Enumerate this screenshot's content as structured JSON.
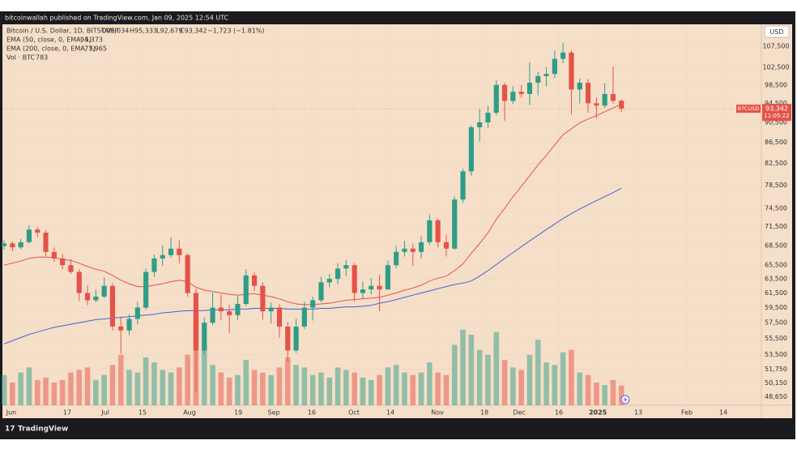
{
  "header": {
    "title": "bitcoinwallah published on TradingView.com, Jan 09, 2025 12:54 UTC"
  },
  "footer": {
    "brand": "TradingView"
  },
  "chart_data": {
    "type": "candlestick",
    "legend": {
      "symbol": "Bitcoin / U.S. Dollar, 1D, BITSTAMP",
      "ohlc": [
        "O95,034",
        "H95,333",
        "L92,679",
        "C93,342"
      ],
      "change": "−1,723 (−1.81%)",
      "ema50": {
        "name": "EMA (50, close, 0, EMA, 5)",
        "value": "94,373"
      },
      "ema200": {
        "name": "EMA (200, close, 0, EMA, 5)",
        "value": "77,965"
      },
      "volume": {
        "name": "Vol · BTC",
        "value": "783"
      }
    },
    "currency": "USD",
    "price_tag": {
      "symbol": "BTCUSD",
      "price": "93,342",
      "countdown": "11:05:22"
    },
    "log_scale": true,
    "grid": true,
    "up_color": "#2e9d88",
    "down_color": "#e5524a",
    "ylim": [
      47700,
      113000
    ],
    "yticks": [
      {
        "value": 107500,
        "label": "107,500"
      },
      {
        "value": 102500,
        "label": "102,500"
      },
      {
        "value": 98500,
        "label": "98,500"
      },
      {
        "value": 94500,
        "label": "94,500"
      },
      {
        "value": 90500,
        "label": "90,500"
      },
      {
        "value": 86500,
        "label": "86,500"
      },
      {
        "value": 82500,
        "label": "82,500"
      },
      {
        "value": 78500,
        "label": "78,500"
      },
      {
        "value": 74500,
        "label": "74,500"
      },
      {
        "value": 71500,
        "label": "71,500"
      },
      {
        "value": 68500,
        "label": "68,500"
      },
      {
        "value": 65500,
        "label": "65,500"
      },
      {
        "value": 63500,
        "label": "63,500"
      },
      {
        "value": 61500,
        "label": "61,500"
      },
      {
        "value": 59500,
        "label": "59,500"
      },
      {
        "value": 57500,
        "label": "57,500"
      },
      {
        "value": 55500,
        "label": "55,500"
      },
      {
        "value": 53500,
        "label": "53,500"
      },
      {
        "value": 51750,
        "label": "51,750"
      },
      {
        "value": 50150,
        "label": "50,150"
      },
      {
        "value": 48650,
        "label": "48,650"
      }
    ],
    "xlim": [
      -0.49,
      90.77
    ],
    "xticks": [
      {
        "value": 0.87,
        "label": "Jun"
      },
      {
        "value": 7.57,
        "label": "17"
      },
      {
        "value": 12.14,
        "label": "Jul"
      },
      {
        "value": 16.6,
        "label": "15"
      },
      {
        "value": 22.23,
        "label": "Aug"
      },
      {
        "value": 28.06,
        "label": "19"
      },
      {
        "value": 32.33,
        "label": "Sep"
      },
      {
        "value": 36.89,
        "label": "16"
      },
      {
        "value": 41.94,
        "label": "Oct"
      },
      {
        "value": 46.31,
        "label": "14"
      },
      {
        "value": 51.94,
        "label": "Nov"
      },
      {
        "value": 57.57,
        "label": "18"
      },
      {
        "value": 61.75,
        "label": "Dec"
      },
      {
        "value": 66.5,
        "label": "16"
      },
      {
        "value": 71.17,
        "label": "2025"
      },
      {
        "value": 76.02,
        "label": "13"
      },
      {
        "value": 81.84,
        "label": "Feb"
      },
      {
        "value": 86.21,
        "label": "14"
      }
    ],
    "candles": [
      [
        68400,
        69300,
        67800,
        68800
      ],
      [
        68800,
        69100,
        67600,
        68200
      ],
      [
        68200,
        69500,
        67900,
        69000
      ],
      [
        69000,
        71700,
        68800,
        71000
      ],
      [
        71000,
        71400,
        69800,
        70500
      ],
      [
        70500,
        70900,
        66800,
        67500
      ],
      [
        67500,
        68200,
        66000,
        66500
      ],
      [
        66500,
        67200,
        64900,
        65500
      ],
      [
        65500,
        66400,
        64200,
        64500
      ],
      [
        64500,
        64900,
        60400,
        61500
      ],
      [
        61500,
        62600,
        59800,
        60500
      ],
      [
        60500,
        62000,
        60200,
        61000
      ],
      [
        61000,
        63700,
        60800,
        62500
      ],
      [
        62500,
        62900,
        56500,
        57000
      ],
      [
        57000,
        58300,
        53600,
        56500
      ],
      [
        56500,
        58600,
        55900,
        58000
      ],
      [
        58000,
        60300,
        57300,
        59500
      ],
      [
        59500,
        65000,
        59200,
        64500
      ],
      [
        64500,
        67100,
        63800,
        66500
      ],
      [
        66500,
        68500,
        65400,
        67000
      ],
      [
        67000,
        69800,
        66600,
        68000
      ],
      [
        68000,
        69300,
        65800,
        67000
      ],
      [
        67000,
        67300,
        61000,
        61500
      ],
      [
        61500,
        62100,
        49200,
        54000
      ],
      [
        54000,
        58200,
        53500,
        57500
      ],
      [
        57500,
        61500,
        57200,
        59500
      ],
      [
        59500,
        61300,
        57900,
        59000
      ],
      [
        59000,
        59900,
        56200,
        58500
      ],
      [
        58500,
        61100,
        57900,
        60000
      ],
      [
        60000,
        64900,
        59700,
        64000
      ],
      [
        64000,
        64500,
        61800,
        62500
      ],
      [
        62500,
        63000,
        57900,
        59000
      ],
      [
        59000,
        60200,
        57400,
        59500
      ],
      [
        59500,
        60000,
        55600,
        57000
      ],
      [
        57000,
        57600,
        52600,
        54000
      ],
      [
        54000,
        58000,
        53700,
        57000
      ],
      [
        57000,
        60300,
        56700,
        59500
      ],
      [
        59500,
        61000,
        57800,
        60500
      ],
      [
        60500,
        63800,
        60200,
        63000
      ],
      [
        63000,
        64200,
        62300,
        63500
      ],
      [
        63500,
        65800,
        62800,
        65000
      ],
      [
        65000,
        66300,
        63900,
        65500
      ],
      [
        65500,
        65800,
        60300,
        61500
      ],
      [
        61500,
        63100,
        60700,
        62000
      ],
      [
        62000,
        63600,
        61300,
        62500
      ],
      [
        62500,
        64100,
        59000,
        62000
      ],
      [
        62000,
        66200,
        61900,
        65500
      ],
      [
        65500,
        68400,
        65100,
        67500
      ],
      [
        67500,
        69200,
        66800,
        68000
      ],
      [
        68000,
        68800,
        65400,
        67500
      ],
      [
        67500,
        69900,
        66500,
        69000
      ],
      [
        69000,
        73500,
        68600,
        72500
      ],
      [
        72500,
        72800,
        68200,
        69000
      ],
      [
        69000,
        70200,
        66800,
        68000
      ],
      [
        68000,
        76500,
        67800,
        76000
      ],
      [
        76000,
        81500,
        75400,
        81000
      ],
      [
        81000,
        89900,
        80200,
        89500
      ],
      [
        89500,
        93300,
        86600,
        90500
      ],
      [
        90500,
        94000,
        89300,
        92500
      ],
      [
        92500,
        99500,
        92000,
        98500
      ],
      [
        98500,
        99000,
        90800,
        95000
      ],
      [
        95000,
        98200,
        94300,
        97000
      ],
      [
        97000,
        98500,
        95700,
        96500
      ],
      [
        96500,
        103700,
        94100,
        99000
      ],
      [
        99000,
        101500,
        96200,
        100500
      ],
      [
        100500,
        102500,
        98200,
        101000
      ],
      [
        101000,
        106500,
        100100,
        104500
      ],
      [
        104500,
        108300,
        103500,
        106000
      ],
      [
        106000,
        106500,
        92200,
        97500
      ],
      [
        97500,
        100000,
        94500,
        99000
      ],
      [
        99000,
        99800,
        92500,
        94500
      ],
      [
        94500,
        95800,
        91300,
        94000
      ],
      [
        94000,
        98900,
        93500,
        96500
      ],
      [
        96500,
        102700,
        94500,
        95034
      ],
      [
        95034,
        95333,
        92679,
        93342
      ]
    ],
    "volume": [
      1200,
      900,
      1300,
      1500,
      1000,
      1100,
      900,
      1000,
      1300,
      1400,
      1500,
      1000,
      1200,
      1600,
      2000,
      1400,
      1300,
      1900,
      1700,
      1400,
      1300,
      1500,
      2000,
      3700,
      2400,
      1600,
      1300,
      1100,
      1200,
      1800,
      1400,
      1300,
      1200,
      1500,
      1900,
      1600,
      1500,
      1200,
      1300,
      1100,
      1500,
      1400,
      1300,
      1100,
      1000,
      1200,
      1500,
      1600,
      1300,
      1200,
      1300,
      1700,
      1300,
      1200,
      2400,
      3000,
      2800,
      2200,
      2000,
      2900,
      1800,
      1500,
      1400,
      2000,
      2600,
      1700,
      1600,
      2100,
      2200,
      1300,
      1200,
      900,
      800,
      1000,
      783
    ],
    "series": [
      {
        "name": "EMA (50, close, 0, EMA, 5)",
        "color": "#e5524a",
        "values": [
          65500,
          65800,
          66100,
          66500,
          66700,
          66700,
          66600,
          66400,
          66200,
          65800,
          65300,
          64900,
          64600,
          64000,
          63300,
          62800,
          62400,
          62400,
          62600,
          62800,
          63100,
          63300,
          63100,
          62300,
          61900,
          61700,
          61500,
          61300,
          61200,
          61300,
          61400,
          61200,
          61000,
          60700,
          60300,
          60000,
          59900,
          59900,
          60000,
          60100,
          60300,
          60500,
          60600,
          60700,
          60800,
          60900,
          61200,
          61500,
          61900,
          62200,
          62600,
          63200,
          63600,
          63900,
          64700,
          65700,
          67300,
          68800,
          70500,
          72700,
          74500,
          76500,
          78300,
          80200,
          82200,
          84000,
          86000,
          88000,
          89200,
          90400,
          91200,
          91900,
          92700,
          93500,
          94373
        ]
      },
      {
        "name": "EMA (200, close, 0, EMA, 5)",
        "color": "#3f63d6",
        "values": [
          54800,
          55200,
          55600,
          56000,
          56300,
          56600,
          56900,
          57100,
          57300,
          57500,
          57700,
          57900,
          58000,
          58100,
          58200,
          58300,
          58400,
          58500,
          58600,
          58800,
          58900,
          59000,
          59100,
          59100,
          59100,
          59200,
          59200,
          59200,
          59300,
          59300,
          59400,
          59400,
          59400,
          59400,
          59300,
          59300,
          59300,
          59300,
          59400,
          59400,
          59500,
          59600,
          59600,
          59700,
          59800,
          60100,
          60300,
          60600,
          60900,
          61200,
          61500,
          61800,
          62100,
          62400,
          62700,
          62900,
          63200,
          63900,
          64700,
          65600,
          66500,
          67400,
          68300,
          69200,
          70100,
          71000,
          71900,
          72800,
          73600,
          74400,
          75100,
          75800,
          76500,
          77200,
          77965
        ]
      }
    ]
  }
}
